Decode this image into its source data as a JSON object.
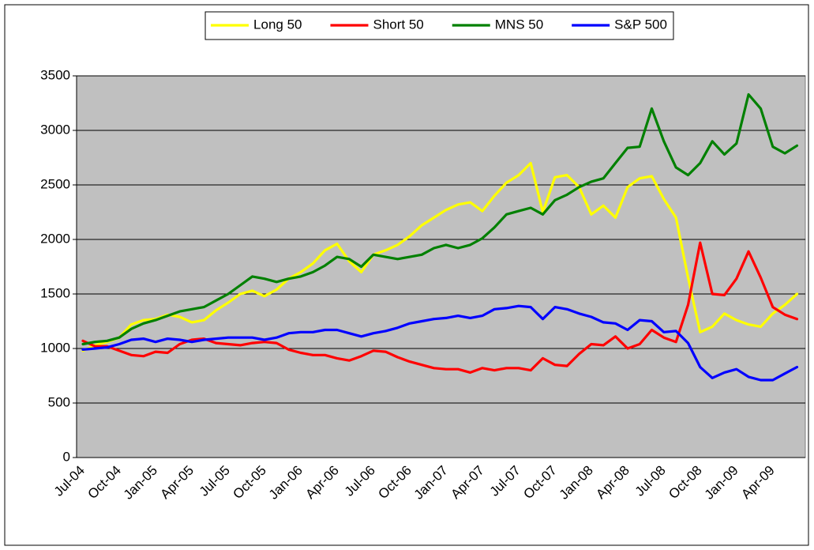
{
  "chart_data": {
    "type": "line",
    "categories": [
      "Jul-04",
      null,
      null,
      "Oct-04",
      null,
      null,
      "Jan-05",
      null,
      null,
      "Apr-05",
      null,
      null,
      "Jul-05",
      null,
      null,
      "Oct-05",
      null,
      null,
      "Jan-06",
      null,
      null,
      "Apr-06",
      null,
      null,
      "Jul-06",
      null,
      null,
      "Oct-06",
      null,
      null,
      "Jan-07",
      null,
      null,
      "Apr-07",
      null,
      null,
      "Jul-07",
      null,
      null,
      "Oct-07",
      null,
      null,
      "Jan-08",
      null,
      null,
      "Apr-08",
      null,
      null,
      "Jul-08",
      null,
      null,
      "Oct-08",
      null,
      null,
      "Jan-09",
      null,
      null,
      "Apr-09",
      null,
      null
    ],
    "series": [
      {
        "name": "Long 50",
        "color": "#ffff00",
        "values": [
          980,
          1030,
          1060,
          1100,
          1220,
          1260,
          1270,
          1310,
          1290,
          1240,
          1260,
          1350,
          1420,
          1500,
          1530,
          1480,
          1540,
          1640,
          1700,
          1780,
          1900,
          1960,
          1800,
          1700,
          1860,
          1900,
          1950,
          2030,
          2130,
          2200,
          2270,
          2320,
          2340,
          2260,
          2400,
          2520,
          2590,
          2700,
          2250,
          2570,
          2590,
          2480,
          2230,
          2310,
          2200,
          2480,
          2560,
          2580,
          2370,
          2200,
          1650,
          1150,
          1200,
          1320,
          1260,
          1220,
          1200,
          1320,
          1400,
          1500
        ]
      },
      {
        "name": "Short 50",
        "color": "#ff0000",
        "values": [
          1070,
          1020,
          1020,
          980,
          940,
          930,
          970,
          960,
          1040,
          1080,
          1090,
          1050,
          1040,
          1030,
          1050,
          1060,
          1050,
          990,
          960,
          940,
          940,
          910,
          890,
          930,
          980,
          970,
          920,
          880,
          850,
          820,
          810,
          810,
          780,
          820,
          800,
          820,
          820,
          800,
          910,
          850,
          840,
          950,
          1040,
          1030,
          1110,
          1000,
          1040,
          1170,
          1100,
          1060,
          1400,
          1970,
          1500,
          1490,
          1640,
          1890,
          1650,
          1380,
          1310,
          1270
        ]
      },
      {
        "name": "MNS 50",
        "color": "#008000",
        "values": [
          1040,
          1060,
          1070,
          1100,
          1180,
          1230,
          1260,
          1300,
          1340,
          1360,
          1380,
          1440,
          1500,
          1580,
          1660,
          1640,
          1610,
          1640,
          1660,
          1700,
          1760,
          1840,
          1820,
          1750,
          1860,
          1840,
          1820,
          1840,
          1860,
          1920,
          1950,
          1920,
          1950,
          2010,
          2110,
          2230,
          2260,
          2290,
          2230,
          2360,
          2410,
          2480,
          2530,
          2560,
          2700,
          2840,
          2850,
          3200,
          2900,
          2660,
          2590,
          2700,
          2900,
          2780,
          2880,
          3330,
          3200,
          2850,
          2790,
          2860
        ]
      },
      {
        "name": "S&P 500",
        "color": "#0000ff",
        "values": [
          990,
          1000,
          1010,
          1040,
          1080,
          1090,
          1060,
          1090,
          1080,
          1060,
          1080,
          1090,
          1100,
          1100,
          1100,
          1080,
          1100,
          1140,
          1150,
          1150,
          1170,
          1170,
          1140,
          1110,
          1140,
          1160,
          1190,
          1230,
          1250,
          1270,
          1280,
          1300,
          1280,
          1300,
          1360,
          1370,
          1390,
          1380,
          1270,
          1380,
          1360,
          1320,
          1290,
          1240,
          1230,
          1170,
          1260,
          1250,
          1150,
          1160,
          1050,
          830,
          730,
          780,
          810,
          740,
          710,
          710,
          770,
          830
        ]
      }
    ],
    "ylim": [
      0,
      3500
    ],
    "yticks": [
      0,
      500,
      1000,
      1500,
      2000,
      2500,
      3000,
      3500
    ],
    "grid": true,
    "legend": "top"
  }
}
